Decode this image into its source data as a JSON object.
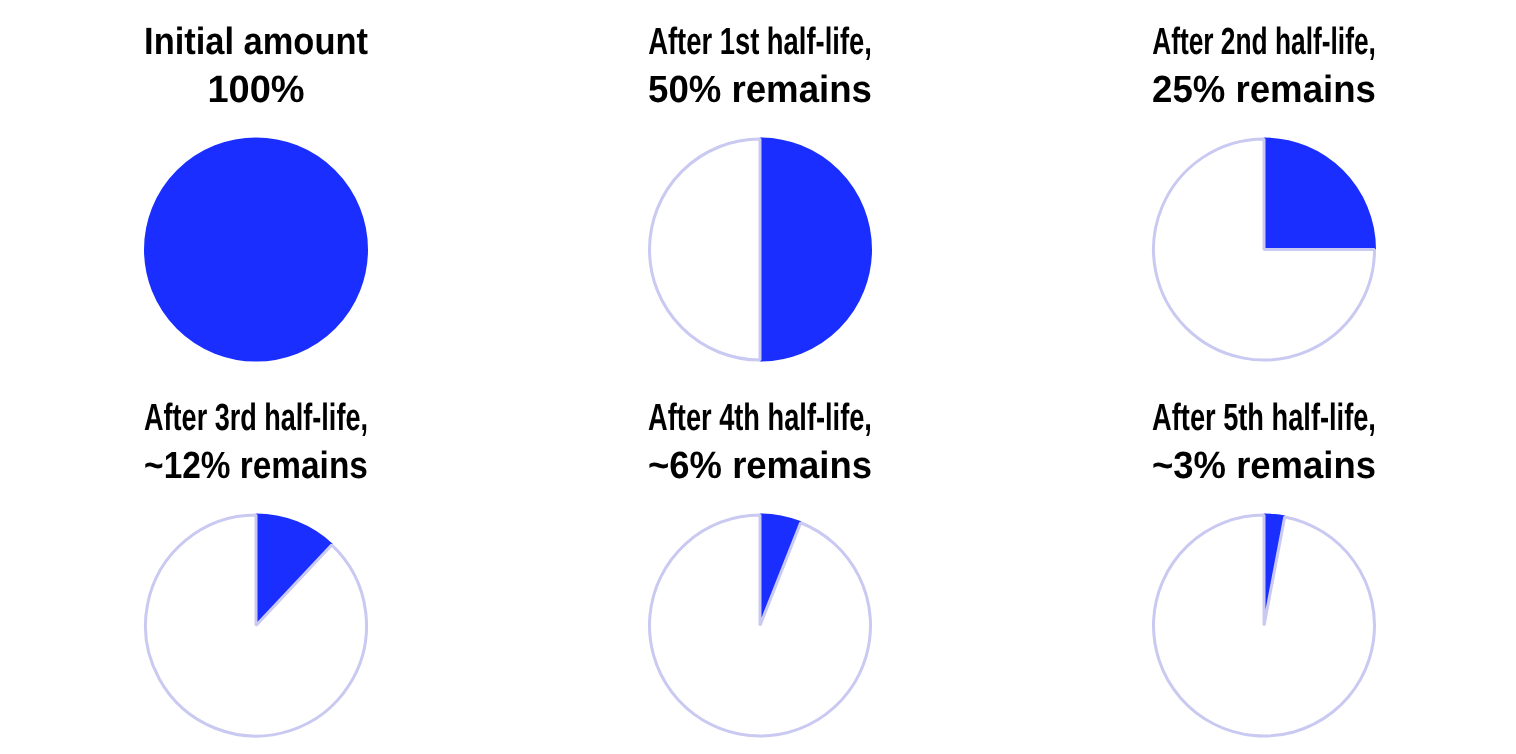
{
  "chart_data": [
    {
      "type": "pie",
      "title": "Initial amount\n100%",
      "categories": [
        null
      ],
      "values": [
        100
      ],
      "colors": [
        "#1a2eff"
      ],
      "legend": false
    },
    {
      "type": "pie",
      "title": "After 1st half-life,\n50% remains",
      "categories": [
        null,
        null
      ],
      "values": [
        50,
        50
      ],
      "colors": [
        "#1a2eff",
        "#ffffff"
      ],
      "legend": false
    },
    {
      "type": "pie",
      "title": "After 2nd half-life,\n25% remains",
      "categories": [
        null,
        null
      ],
      "values": [
        25,
        75
      ],
      "colors": [
        "#1a2eff",
        "#ffffff"
      ],
      "legend": false
    },
    {
      "type": "pie",
      "title": "After 3rd half-life,\n~12% remains",
      "categories": [
        null,
        null
      ],
      "values": [
        12,
        88
      ],
      "colors": [
        "#1a2eff",
        "#ffffff"
      ],
      "legend": false
    },
    {
      "type": "pie",
      "title": "After 4th half-life,\n~6% remains",
      "categories": [
        null,
        null
      ],
      "values": [
        6,
        94
      ],
      "colors": [
        "#1a2eff",
        "#ffffff"
      ],
      "legend": false
    },
    {
      "type": "pie",
      "title": "After 5th half-life,\n~3% remains",
      "categories": [
        null,
        null
      ],
      "values": [
        3,
        97
      ],
      "colors": [
        "#1a2eff",
        "#ffffff"
      ],
      "legend": false
    }
  ]
}
